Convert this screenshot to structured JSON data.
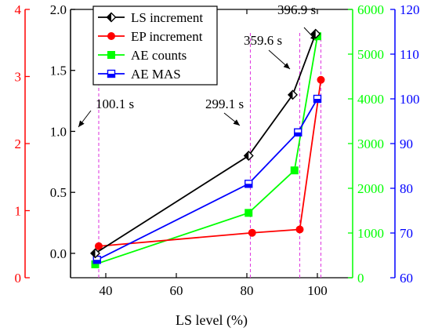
{
  "chart_data": {
    "type": "line",
    "xlabel": "LS level (%)",
    "xlim": [
      30,
      110
    ],
    "x_ticks": [
      "40",
      "60",
      "80",
      "100"
    ],
    "grid": false,
    "legend_position": "top-left",
    "axes": [
      {
        "id": "ls",
        "side": "left-inner",
        "color": "#000000",
        "ylim": [
          -0.2,
          2.0
        ],
        "ticks": [
          "0.0",
          "0.5",
          "1.0",
          "1.5",
          "2.0"
        ]
      },
      {
        "id": "ep",
        "side": "left-outer",
        "color": "#ff0000",
        "ylim": [
          0,
          4
        ],
        "ticks": [
          "0",
          "1",
          "2",
          "3",
          "4"
        ]
      },
      {
        "id": "ae",
        "side": "right-inner",
        "color": "#00ff00",
        "ylim": [
          0,
          6000
        ],
        "ticks": [
          "0",
          "1000",
          "2000",
          "3000",
          "4000",
          "5000",
          "6000"
        ]
      },
      {
        "id": "mas",
        "side": "right-outer",
        "color": "#0000ff",
        "ylim": [
          60,
          120
        ],
        "ticks": [
          "60",
          "70",
          "80",
          "90",
          "100",
          "110",
          "120"
        ]
      }
    ],
    "series": [
      {
        "name": "LS increment",
        "axis": "ls",
        "color": "#000000",
        "marker": "half-diamond",
        "x": [
          37,
          80.5,
          93,
          99.5
        ],
        "values": [
          0.0,
          0.8,
          1.3,
          1.8
        ]
      },
      {
        "name": "EP increment",
        "axis": "ep",
        "color": "#ff0000",
        "marker": "circle",
        "x": [
          38,
          81.5,
          95,
          101
        ],
        "values": [
          0.47,
          0.67,
          0.72,
          2.95
        ]
      },
      {
        "name": "AE counts",
        "axis": "ae",
        "color": "#00ff00",
        "marker": "square",
        "x": [
          37,
          80.5,
          93.5,
          100
        ],
        "values": [
          300,
          1450,
          2400,
          5400
        ]
      },
      {
        "name": "AE MAS",
        "axis": "mas",
        "color": "#0000ff",
        "marker": "half-square",
        "x": [
          37.5,
          80.5,
          94.5,
          100
        ],
        "values": [
          64,
          81,
          92.5,
          100
        ]
      }
    ],
    "reference_lines": [
      {
        "x": 38,
        "label": "100.1 s"
      },
      {
        "x": 81,
        "label": "299.1 s"
      },
      {
        "x": 95,
        "label": "359.6 s"
      },
      {
        "x": 101,
        "label": "396.9 s"
      }
    ]
  }
}
